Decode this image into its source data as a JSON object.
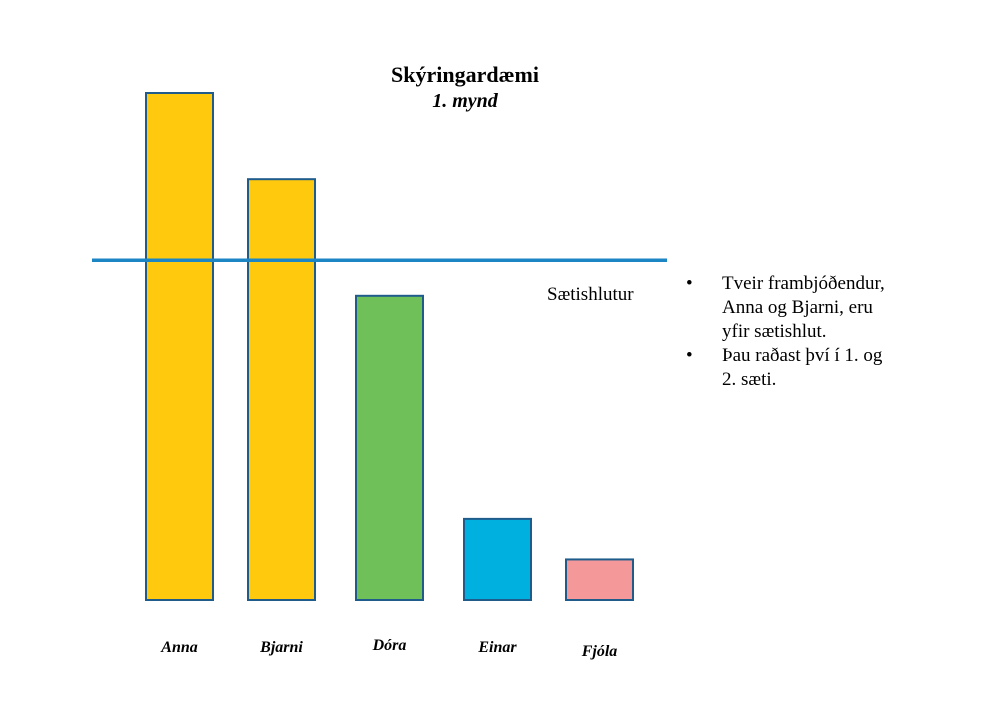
{
  "chart_data": {
    "type": "bar",
    "title": "Skýringardæmi",
    "subtitle": "1. mynd",
    "categories": [
      "Anna",
      "Bjarni",
      "Dóra",
      "Einar",
      "Fjóla"
    ],
    "values": [
      100,
      83,
      60,
      16,
      8
    ],
    "bar_colors": [
      "#FFC90E",
      "#FFC90E",
      "#70C05A",
      "#00B0DE",
      "#F4989A"
    ],
    "bar_stroke": "#1F5C8C",
    "ylim": [
      0,
      100
    ],
    "threshold": {
      "value": 67,
      "label": "Sætishlutur",
      "color": "#1C86C4"
    },
    "xlabel": "",
    "ylabel": "",
    "grid": false
  },
  "notes": [
    "Tveir frambjóðendur, Anna og Bjarni, eru yfir sætishlut.",
    "Þau raðast því í 1. og 2. sæti."
  ],
  "bullet_char": "•"
}
